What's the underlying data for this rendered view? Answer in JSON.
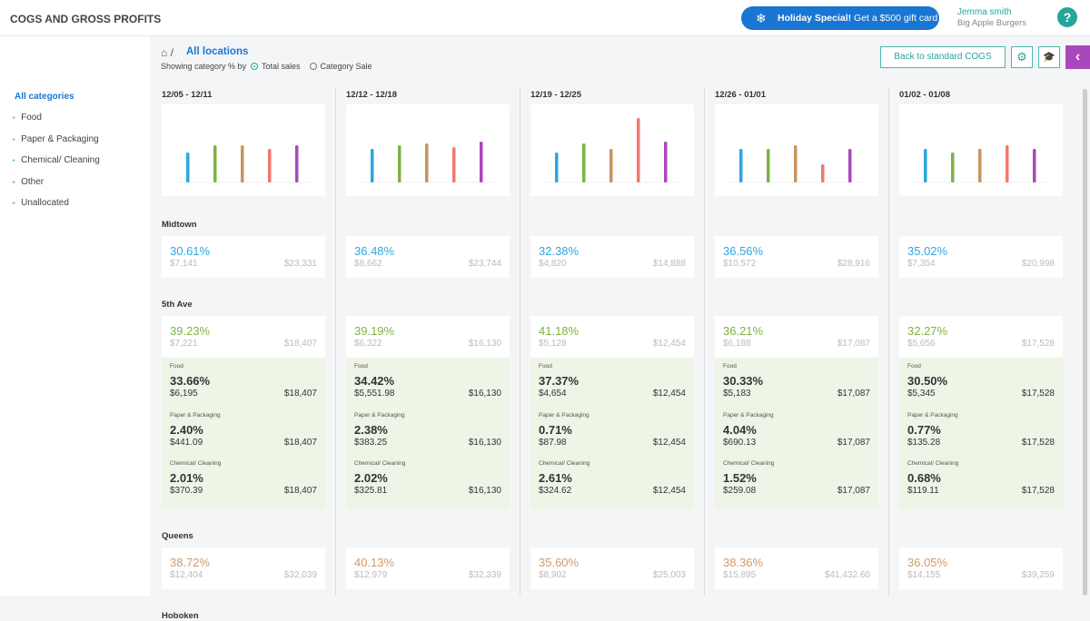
{
  "header": {
    "title": "COGS AND GROSS PROFITS",
    "promo_bold": "Holiday Special!",
    "promo_text": "Get a $500 gift card",
    "user_name": "Jemma smith",
    "company": "Big Apple Burgers",
    "help": "?"
  },
  "toolbar": {
    "breadcrumb": "All locations",
    "showing_label": "Showing category % by",
    "options": [
      "Total sales",
      "Category Sale"
    ],
    "selected": 0,
    "back_button": "Back to standard COGS"
  },
  "sidebar": {
    "title": "All categories",
    "items": [
      "Food",
      "Paper & Packaging",
      "Chemical/ Cleaning",
      "Other",
      "Unallocated"
    ]
  },
  "bar_colors": [
    "#2ea7e0",
    "#7cb342",
    "#c9955c",
    "#f2786e",
    "#ab47bc"
  ],
  "bar_ylim": [
    0,
    80
  ],
  "weeks": [
    {
      "label": "12/05 - 12/11",
      "bars": [
        33,
        41,
        41,
        37,
        41
      ]
    },
    {
      "label": "12/12 - 12/18",
      "bars": [
        37,
        41,
        43,
        39,
        45
      ]
    },
    {
      "label": "12/19 - 12/25",
      "bars": [
        33,
        43,
        37,
        71,
        45
      ]
    },
    {
      "label": "12/26 - 01/01",
      "bars": [
        37,
        37,
        41,
        20,
        37
      ]
    },
    {
      "label": "01/02 - 01/08",
      "bars": [
        37,
        33,
        37,
        41,
        37
      ]
    }
  ],
  "locations": [
    {
      "name": "Midtown",
      "color": "#2ea7e0",
      "cells": [
        {
          "pct": "30.61%",
          "cost": "$7,141",
          "sales": "$23,331"
        },
        {
          "pct": "36.48%",
          "cost": "$8,662",
          "sales": "$23,744"
        },
        {
          "pct": "32.38%",
          "cost": "$4,820",
          "sales": "$14,888"
        },
        {
          "pct": "36.56%",
          "cost": "$10,572",
          "sales": "$28,916"
        },
        {
          "pct": "35.02%",
          "cost": "$7,354",
          "sales": "$20,998"
        }
      ]
    },
    {
      "name": "5th Ave",
      "color": "#7cb342",
      "cells": [
        {
          "pct": "39.23%",
          "cost": "$7,221",
          "sales": "$18,407",
          "categories": [
            {
              "name": "Food",
              "pct": "33.66%",
              "cost": "$6,195",
              "sales": "$18,407"
            },
            {
              "name": "Paper & Packaging",
              "pct": "2.40%",
              "cost": "$441.09",
              "sales": "$18,407"
            },
            {
              "name": "Chemical/ Cleaning",
              "pct": "2.01%",
              "cost": "$370.39",
              "sales": "$18,407"
            }
          ]
        },
        {
          "pct": "39.19%",
          "cost": "$6,322",
          "sales": "$16,130",
          "categories": [
            {
              "name": "Food",
              "pct": "34.42%",
              "cost": "$5,551.98",
              "sales": "$16,130"
            },
            {
              "name": "Paper & Packaging",
              "pct": "2.38%",
              "cost": "$383.25",
              "sales": "$16,130"
            },
            {
              "name": "Chemical/ Cleaning",
              "pct": "2.02%",
              "cost": "$325.81",
              "sales": "$16,130"
            }
          ]
        },
        {
          "pct": "41.18%",
          "cost": "$5,128",
          "sales": "$12,454",
          "categories": [
            {
              "name": "Food",
              "pct": "37.37%",
              "cost": "$4,654",
              "sales": "$12,454"
            },
            {
              "name": "Paper & Packaging",
              "pct": "0.71%",
              "cost": "$87.98",
              "sales": "$12,454"
            },
            {
              "name": "Chemical/ Cleaning",
              "pct": "2.61%",
              "cost": "$324.62",
              "sales": "$12,454"
            }
          ]
        },
        {
          "pct": "36.21%",
          "cost": "$6,188",
          "sales": "$17,087",
          "categories": [
            {
              "name": "Food",
              "pct": "30.33%",
              "cost": "$5,183",
              "sales": "$17,087"
            },
            {
              "name": "Paper & Packaging",
              "pct": "4.04%",
              "cost": "$690.13",
              "sales": "$17,087"
            },
            {
              "name": "Chemical/ Cleaning",
              "pct": "1.52%",
              "cost": "$259.08",
              "sales": "$17,087"
            }
          ]
        },
        {
          "pct": "32.27%",
          "cost": "$5,656",
          "sales": "$17,528",
          "categories": [
            {
              "name": "Food",
              "pct": "30.50%",
              "cost": "$5,345",
              "sales": "$17,528"
            },
            {
              "name": "Paper & Packaging",
              "pct": "0.77%",
              "cost": "$135.28",
              "sales": "$17,528"
            },
            {
              "name": "Chemical/ Cleaning",
              "pct": "0.68%",
              "cost": "$119.11",
              "sales": "$17,528"
            }
          ]
        }
      ]
    },
    {
      "name": "Queens",
      "color": "#d19a6a",
      "cells": [
        {
          "pct": "38.72%",
          "cost": "$12,404",
          "sales": "$32,039"
        },
        {
          "pct": "40.13%",
          "cost": "$12,979",
          "sales": "$32,339"
        },
        {
          "pct": "35.60%",
          "cost": "$8,902",
          "sales": "$25,003"
        },
        {
          "pct": "38.36%",
          "cost": "$15,895",
          "sales": "$41,432.60"
        },
        {
          "pct": "36.05%",
          "cost": "$14,155",
          "sales": "$39,259"
        }
      ]
    },
    {
      "name": "Hoboken",
      "color": "#2ea7e0",
      "cells": []
    }
  ]
}
